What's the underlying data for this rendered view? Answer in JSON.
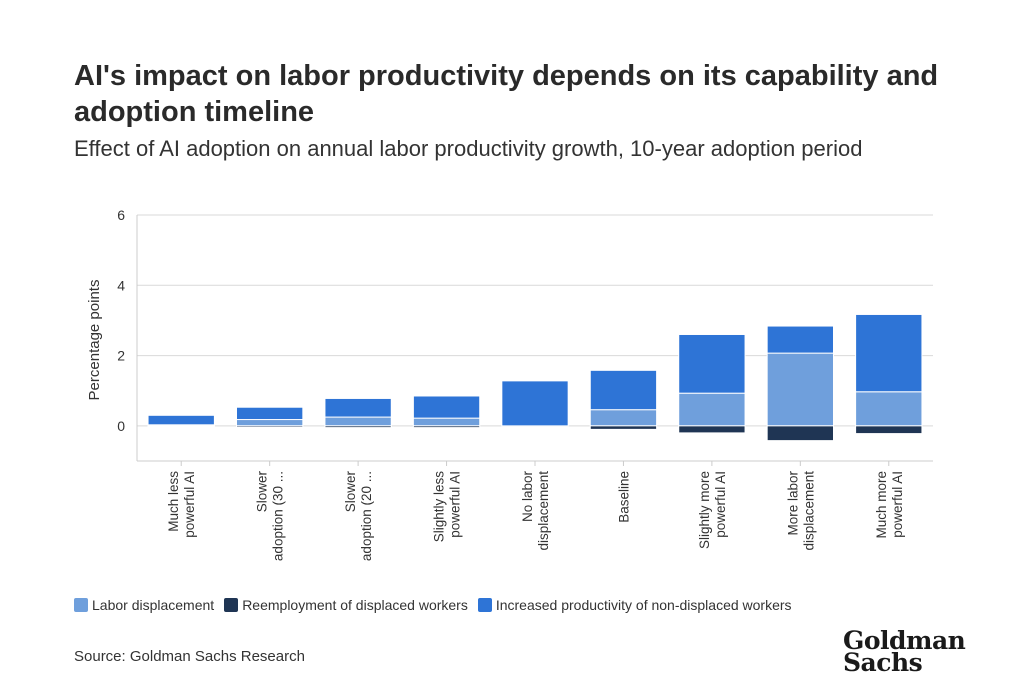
{
  "title": "AI's impact on labor productivity depends on its capability and adoption timeline",
  "subtitle": "Effect of AI adoption on annual labor productivity growth, 10-year adoption period",
  "source": "Source: Goldman Sachs Research",
  "logo": {
    "line1": "Goldman",
    "line2": "Sachs"
  },
  "legend": [
    {
      "label": "Labor displacement",
      "color": "#6f9fdc"
    },
    {
      "label": "Reemployment of displaced workers",
      "color": "#1f3554"
    },
    {
      "label": "Increased productivity of non-displaced workers",
      "color": "#2e74d6"
    }
  ],
  "chart_data": {
    "type": "bar",
    "stacked": true,
    "ylabel": "Percentage points",
    "ylim": [
      -1,
      6
    ],
    "yticks": [
      0,
      2,
      4,
      6
    ],
    "grid": true,
    "legend_position": "bottom",
    "categories": [
      [
        "Much less",
        "powerful AI"
      ],
      [
        "Slower",
        "adoption (30 ..."
      ],
      [
        "Slower",
        "adoption (20 ..."
      ],
      [
        "Slightly less",
        "powerful AI"
      ],
      [
        "No labor",
        "displacement"
      ],
      [
        "Baseline"
      ],
      [
        "Slightly more",
        "powerful AI"
      ],
      [
        "More labor",
        "displacement"
      ],
      [
        "Much more",
        "powerful AI"
      ]
    ],
    "series": [
      {
        "name": "Labor displacement",
        "color": "#6f9fdc",
        "values": [
          0.03,
          0.18,
          0.25,
          0.22,
          0.0,
          0.46,
          0.93,
          2.07,
          0.97
        ]
      },
      {
        "name": "Reemployment of displaced workers",
        "color": "#1f3554",
        "values": [
          -0.01,
          -0.04,
          -0.05,
          -0.05,
          0.0,
          -0.1,
          -0.2,
          -0.42,
          -0.22
        ]
      },
      {
        "name": "Increased productivity of non-displaced workers",
        "color": "#2e74d6",
        "values": [
          0.27,
          0.35,
          0.53,
          0.63,
          1.28,
          1.12,
          1.67,
          0.77,
          2.2
        ]
      }
    ]
  }
}
